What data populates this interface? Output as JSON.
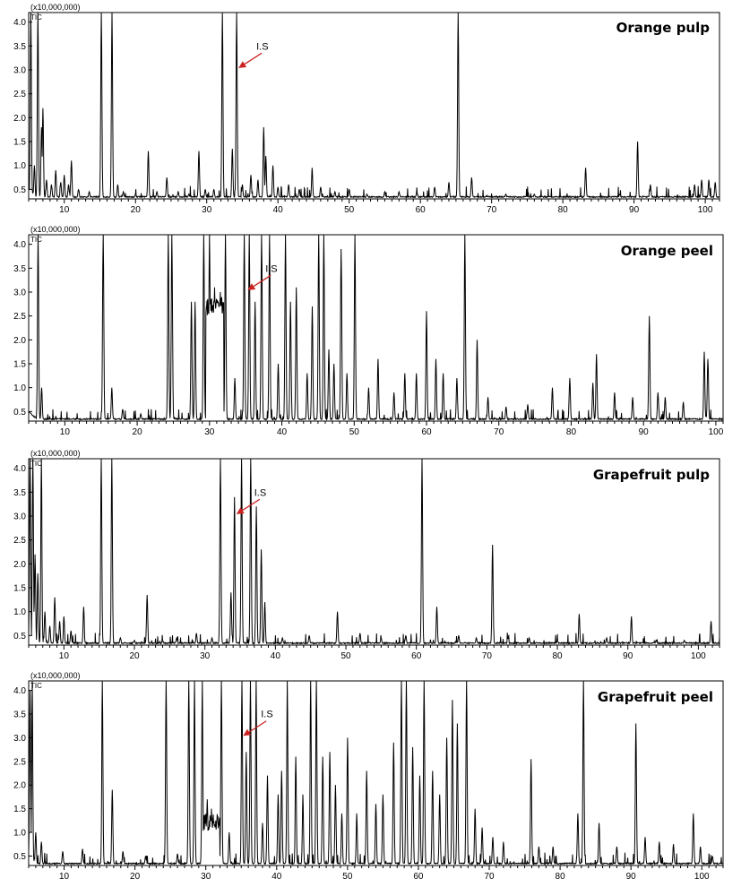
{
  "chart_data": [
    {
      "type": "line",
      "title": "Orange pulp",
      "y_multiplier_label": "(x10,000,000)",
      "trace_label": "TIC",
      "annotation": "I.S",
      "annotation_x": 34.2,
      "xlim": [
        5,
        102
      ],
      "ylim": [
        0.3,
        4.2
      ],
      "x_ticks": [
        10,
        20,
        30,
        40,
        50,
        60,
        70,
        80,
        90,
        100
      ],
      "y_ticks": [
        0.5,
        1.0,
        1.5,
        2.0,
        2.5,
        3.0,
        3.5,
        4.0
      ],
      "baseline": 0.33,
      "peaks": [
        [
          5.3,
          4.2
        ],
        [
          5.8,
          1.0
        ],
        [
          6.3,
          4.2
        ],
        [
          6.8,
          1.8
        ],
        [
          7.0,
          2.2
        ],
        [
          7.5,
          0.7
        ],
        [
          8.2,
          0.6
        ],
        [
          8.8,
          0.9
        ],
        [
          9.5,
          0.65
        ],
        [
          10.0,
          0.8
        ],
        [
          10.6,
          0.6
        ],
        [
          11.0,
          1.1
        ],
        [
          12.0,
          0.5
        ],
        [
          13.5,
          0.45
        ],
        [
          15.2,
          4.2
        ],
        [
          16.7,
          4.2
        ],
        [
          17.5,
          0.6
        ],
        [
          18.3,
          0.45
        ],
        [
          20.0,
          0.4
        ],
        [
          21.8,
          1.3
        ],
        [
          23.0,
          0.45
        ],
        [
          24.4,
          0.75
        ],
        [
          26.0,
          0.45
        ],
        [
          27.5,
          0.4
        ],
        [
          28.9,
          1.3
        ],
        [
          29.8,
          0.5
        ],
        [
          31.0,
          0.5
        ],
        [
          32.2,
          4.2
        ],
        [
          33.6,
          1.35
        ],
        [
          34.2,
          4.2
        ],
        [
          35.0,
          0.6
        ],
        [
          36.2,
          0.8
        ],
        [
          37.2,
          0.7
        ],
        [
          38.0,
          1.8
        ],
        [
          38.3,
          1.2
        ],
        [
          39.3,
          1.0
        ],
        [
          40.0,
          0.55
        ],
        [
          41.5,
          0.6
        ],
        [
          43.0,
          0.5
        ],
        [
          44.8,
          0.95
        ],
        [
          46.0,
          0.55
        ],
        [
          48.0,
          0.45
        ],
        [
          50.0,
          0.5
        ],
        [
          52.5,
          0.4
        ],
        [
          55.0,
          0.45
        ],
        [
          57.0,
          0.45
        ],
        [
          59.5,
          0.45
        ],
        [
          62.0,
          0.55
        ],
        [
          64.0,
          0.65
        ],
        [
          65.3,
          4.2
        ],
        [
          67.2,
          0.75
        ],
        [
          72.0,
          0.4
        ],
        [
          76.0,
          0.4
        ],
        [
          83.2,
          0.95
        ],
        [
          88.0,
          0.4
        ],
        [
          90.5,
          1.5
        ],
        [
          92.3,
          0.6
        ],
        [
          98.5,
          0.6
        ],
        [
          99.5,
          0.7
        ],
        [
          100.5,
          0.7
        ],
        [
          101.4,
          0.65
        ]
      ]
    },
    {
      "type": "line",
      "title": "Orange peel",
      "y_multiplier_label": "(x10,000,000)",
      "trace_label": "TIC",
      "annotation": "I.S",
      "annotation_x": 35.0,
      "xlim": [
        5,
        101
      ],
      "ylim": [
        0.3,
        4.2
      ],
      "x_ticks": [
        10,
        20,
        30,
        40,
        50,
        60,
        70,
        80,
        90,
        100
      ],
      "y_ticks": [
        0.5,
        1.0,
        1.5,
        2.0,
        2.5,
        3.0,
        3.5,
        4.0
      ],
      "baseline": 0.33,
      "peaks": [
        [
          6.3,
          4.2
        ],
        [
          6.8,
          1.0
        ],
        [
          15.3,
          4.2
        ],
        [
          16.5,
          1.0
        ],
        [
          18.0,
          0.55
        ],
        [
          20.5,
          0.45
        ],
        [
          24.3,
          4.2
        ],
        [
          24.8,
          4.2
        ],
        [
          27.5,
          2.8
        ],
        [
          28.0,
          2.8
        ],
        [
          29.2,
          4.2
        ],
        [
          30.0,
          4.2
        ],
        [
          30.7,
          3.1
        ],
        [
          31.5,
          3.0
        ],
        [
          32.2,
          4.2
        ],
        [
          33.5,
          1.2
        ],
        [
          34.8,
          4.2
        ],
        [
          35.5,
          4.2
        ],
        [
          36.3,
          2.8
        ],
        [
          37.2,
          4.2
        ],
        [
          38.3,
          4.2
        ],
        [
          39.5,
          1.5
        ],
        [
          40.5,
          4.2
        ],
        [
          41.2,
          2.8
        ],
        [
          42.0,
          3.1
        ],
        [
          43.5,
          1.3
        ],
        [
          44.2,
          2.7
        ],
        [
          45.1,
          4.2
        ],
        [
          45.8,
          4.2
        ],
        [
          46.5,
          1.8
        ],
        [
          47.2,
          1.5
        ],
        [
          48.2,
          3.9
        ],
        [
          49.0,
          1.3
        ],
        [
          50.1,
          4.2
        ],
        [
          52.0,
          1.0
        ],
        [
          53.3,
          1.6
        ],
        [
          55.5,
          0.9
        ],
        [
          57.0,
          1.3
        ],
        [
          58.6,
          1.3
        ],
        [
          60.0,
          2.6
        ],
        [
          61.3,
          1.6
        ],
        [
          62.3,
          1.3
        ],
        [
          64.2,
          1.2
        ],
        [
          65.3,
          4.2
        ],
        [
          67.0,
          2.0
        ],
        [
          68.5,
          0.8
        ],
        [
          71.0,
          0.6
        ],
        [
          74.0,
          0.65
        ],
        [
          77.4,
          1.0
        ],
        [
          79.8,
          1.2
        ],
        [
          83.0,
          1.1
        ],
        [
          83.5,
          1.7
        ],
        [
          86.0,
          0.9
        ],
        [
          88.5,
          0.8
        ],
        [
          90.8,
          2.5
        ],
        [
          92.0,
          0.9
        ],
        [
          93.0,
          0.8
        ],
        [
          95.5,
          0.7
        ],
        [
          98.4,
          1.75
        ],
        [
          98.9,
          1.6
        ]
      ]
    },
    {
      "type": "line",
      "title": "Grapefruit pulp",
      "y_multiplier_label": "(x10,000,000)",
      "trace_label": "TIC",
      "annotation": "I.S",
      "annotation_x": 34.2,
      "xlim": [
        5,
        103
      ],
      "ylim": [
        0.3,
        4.2
      ],
      "x_ticks": [
        10,
        20,
        30,
        40,
        50,
        60,
        70,
        80,
        90,
        100
      ],
      "y_ticks": [
        0.5,
        1.0,
        1.5,
        2.0,
        2.5,
        3.0,
        3.5,
        4.0
      ],
      "baseline": 0.33,
      "peaks": [
        [
          5.2,
          4.2
        ],
        [
          5.6,
          4.2
        ],
        [
          5.9,
          2.2
        ],
        [
          6.3,
          1.8
        ],
        [
          6.8,
          4.2
        ],
        [
          7.3,
          1.0
        ],
        [
          8.0,
          0.7
        ],
        [
          8.7,
          1.3
        ],
        [
          9.4,
          0.8
        ],
        [
          10.0,
          0.9
        ],
        [
          11.0,
          0.6
        ],
        [
          12.8,
          1.1
        ],
        [
          15.3,
          4.2
        ],
        [
          16.8,
          4.2
        ],
        [
          18.0,
          0.45
        ],
        [
          20.0,
          0.4
        ],
        [
          21.8,
          1.35
        ],
        [
          24.0,
          0.4
        ],
        [
          26.0,
          0.45
        ],
        [
          28.8,
          0.55
        ],
        [
          31.0,
          0.45
        ],
        [
          32.2,
          4.2
        ],
        [
          33.7,
          1.4
        ],
        [
          34.2,
          3.4
        ],
        [
          35.2,
          4.2
        ],
        [
          36.5,
          4.2
        ],
        [
          37.3,
          3.2
        ],
        [
          38.0,
          2.3
        ],
        [
          38.5,
          1.2
        ],
        [
          41.0,
          0.45
        ],
        [
          44.8,
          0.5
        ],
        [
          48.8,
          1.0
        ],
        [
          52.0,
          0.55
        ],
        [
          55.0,
          0.45
        ],
        [
          58.5,
          0.5
        ],
        [
          60.8,
          4.2
        ],
        [
          62.9,
          1.1
        ],
        [
          66.0,
          0.5
        ],
        [
          68.5,
          0.45
        ],
        [
          70.8,
          2.4
        ],
        [
          73.0,
          0.45
        ],
        [
          76.0,
          0.45
        ],
        [
          80.0,
          0.4
        ],
        [
          83.1,
          0.95
        ],
        [
          87.0,
          0.45
        ],
        [
          90.5,
          0.9
        ],
        [
          94.0,
          0.4
        ],
        [
          98.0,
          0.4
        ],
        [
          101.8,
          0.8
        ]
      ]
    },
    {
      "type": "line",
      "title": "Grapefruit peel",
      "y_multiplier_label": "(x10,000,000)",
      "trace_label": "TIC",
      "annotation": "I.S",
      "annotation_x": 35.0,
      "xlim": [
        5,
        103
      ],
      "ylim": [
        0.3,
        4.2
      ],
      "x_ticks": [
        10,
        20,
        30,
        40,
        50,
        60,
        70,
        80,
        90,
        100
      ],
      "y_ticks": [
        0.5,
        1.0,
        1.5,
        2.0,
        2.5,
        3.0,
        3.5,
        4.0
      ],
      "baseline": 0.33,
      "peaks": [
        [
          5.2,
          4.0
        ],
        [
          5.5,
          4.2
        ],
        [
          6.0,
          1.0
        ],
        [
          6.8,
          0.8
        ],
        [
          9.8,
          0.6
        ],
        [
          12.6,
          0.65
        ],
        [
          15.4,
          4.2
        ],
        [
          16.8,
          1.9
        ],
        [
          18.3,
          0.6
        ],
        [
          21.5,
          0.5
        ],
        [
          24.4,
          4.2
        ],
        [
          26.0,
          0.55
        ],
        [
          27.6,
          4.2
        ],
        [
          28.4,
          4.2
        ],
        [
          29.5,
          4.2
        ],
        [
          30.2,
          1.7
        ],
        [
          30.8,
          1.5
        ],
        [
          31.5,
          1.1
        ],
        [
          32.2,
          4.2
        ],
        [
          33.3,
          1.0
        ],
        [
          35.1,
          4.2
        ],
        [
          35.7,
          2.7
        ],
        [
          36.3,
          4.2
        ],
        [
          37.1,
          4.2
        ],
        [
          38.0,
          1.2
        ],
        [
          38.7,
          2.2
        ],
        [
          40.2,
          1.8
        ],
        [
          40.7,
          2.3
        ],
        [
          41.5,
          4.2
        ],
        [
          42.7,
          2.6
        ],
        [
          43.7,
          1.8
        ],
        [
          44.8,
          4.2
        ],
        [
          45.6,
          4.2
        ],
        [
          46.5,
          2.6
        ],
        [
          47.5,
          2.7
        ],
        [
          48.3,
          2.0
        ],
        [
          49.2,
          1.4
        ],
        [
          50.0,
          3.0
        ],
        [
          51.3,
          1.4
        ],
        [
          52.7,
          2.3
        ],
        [
          54.0,
          1.6
        ],
        [
          55.0,
          1.8
        ],
        [
          56.5,
          2.9
        ],
        [
          57.6,
          4.2
        ],
        [
          58.3,
          4.2
        ],
        [
          59.2,
          2.8
        ],
        [
          60.2,
          2.2
        ],
        [
          60.8,
          4.2
        ],
        [
          62.0,
          2.3
        ],
        [
          63.0,
          1.8
        ],
        [
          64.0,
          3.0
        ],
        [
          64.8,
          3.8
        ],
        [
          65.5,
          3.3
        ],
        [
          66.8,
          4.2
        ],
        [
          68.0,
          1.5
        ],
        [
          69.0,
          1.1
        ],
        [
          70.5,
          0.9
        ],
        [
          72.0,
          0.8
        ],
        [
          75.9,
          2.55
        ],
        [
          77.0,
          0.7
        ],
        [
          79.0,
          0.7
        ],
        [
          82.5,
          1.4
        ],
        [
          83.3,
          4.2
        ],
        [
          85.5,
          1.2
        ],
        [
          88.0,
          0.7
        ],
        [
          90.7,
          3.3
        ],
        [
          92.0,
          0.9
        ],
        [
          94.0,
          0.8
        ],
        [
          96.0,
          0.75
        ],
        [
          98.8,
          1.4
        ],
        [
          99.8,
          0.7
        ],
        [
          101.5,
          0.5
        ]
      ]
    }
  ]
}
